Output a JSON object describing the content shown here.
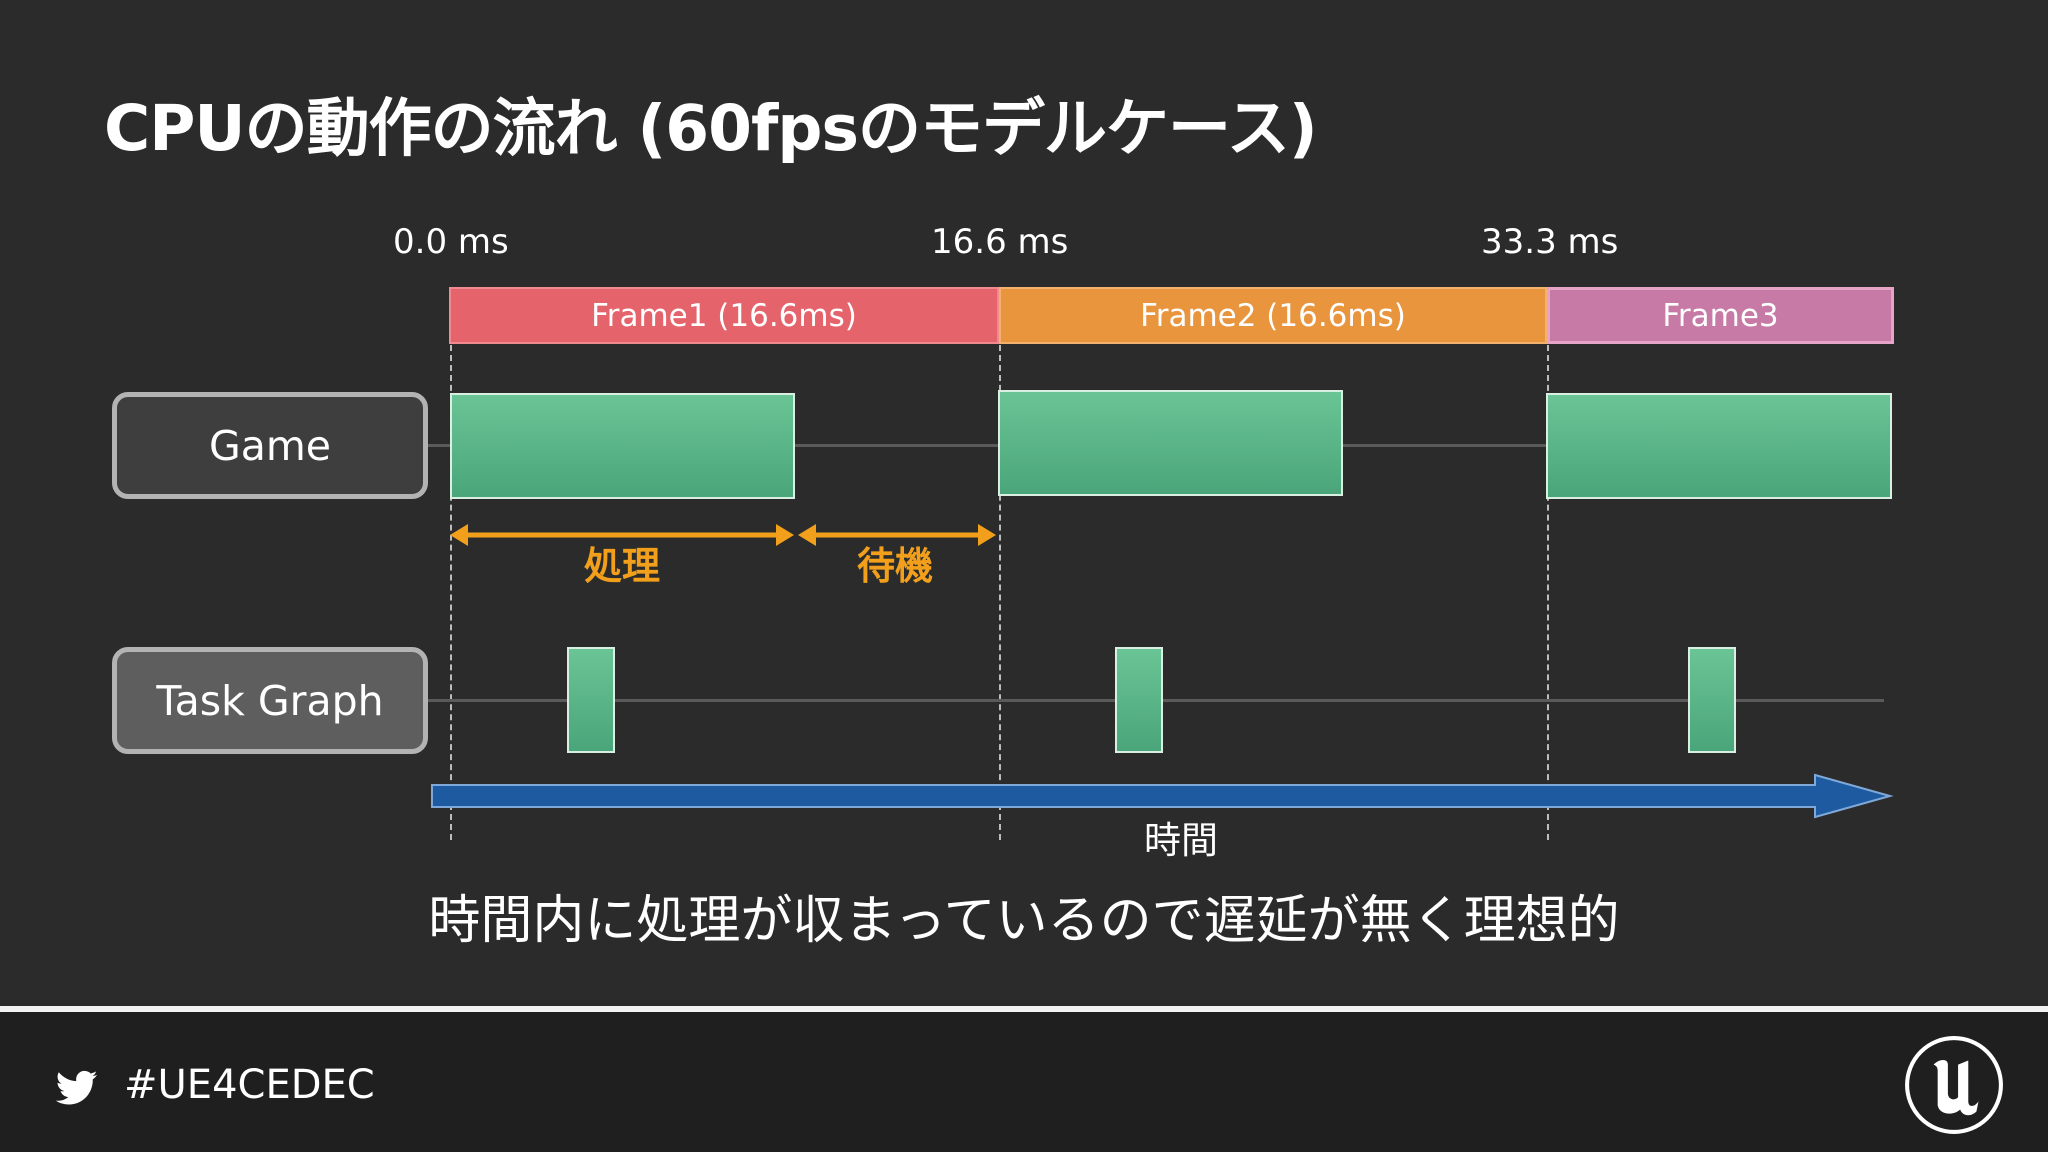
{
  "title": "CPUの動作の流れ (60fpsのモデルケース)",
  "timeline": {
    "markers": [
      "0.0 ms",
      "16.6 ms",
      "33.3 ms"
    ],
    "frames": [
      {
        "label": "Frame1 (16.6ms)",
        "color": "#e5636b"
      },
      {
        "label": "Frame2 (16.6ms)",
        "color": "#e8953e"
      },
      {
        "label": "Frame3",
        "color": "#c67aa5"
      }
    ],
    "tracks": [
      "Game",
      "Task Graph"
    ],
    "annotations": {
      "processing": "処理",
      "waiting": "待機"
    },
    "axis_caption": "時間"
  },
  "colors": {
    "block_green": "#5cb889",
    "arrow_orange": "#f2a01c",
    "time_arrow_blue": "#1d5aa0",
    "game_label_bg": "#3e3e3e",
    "taskgraph_label_bg": "#5e5e5e"
  },
  "subtitle": "時間内に処理が収まっているので遅延が無く理想的",
  "footer": {
    "hashtag": "#UE4CEDEC",
    "twitter_icon": "twitter-bird-icon",
    "logo_icon": "unreal-engine-logo-icon"
  }
}
